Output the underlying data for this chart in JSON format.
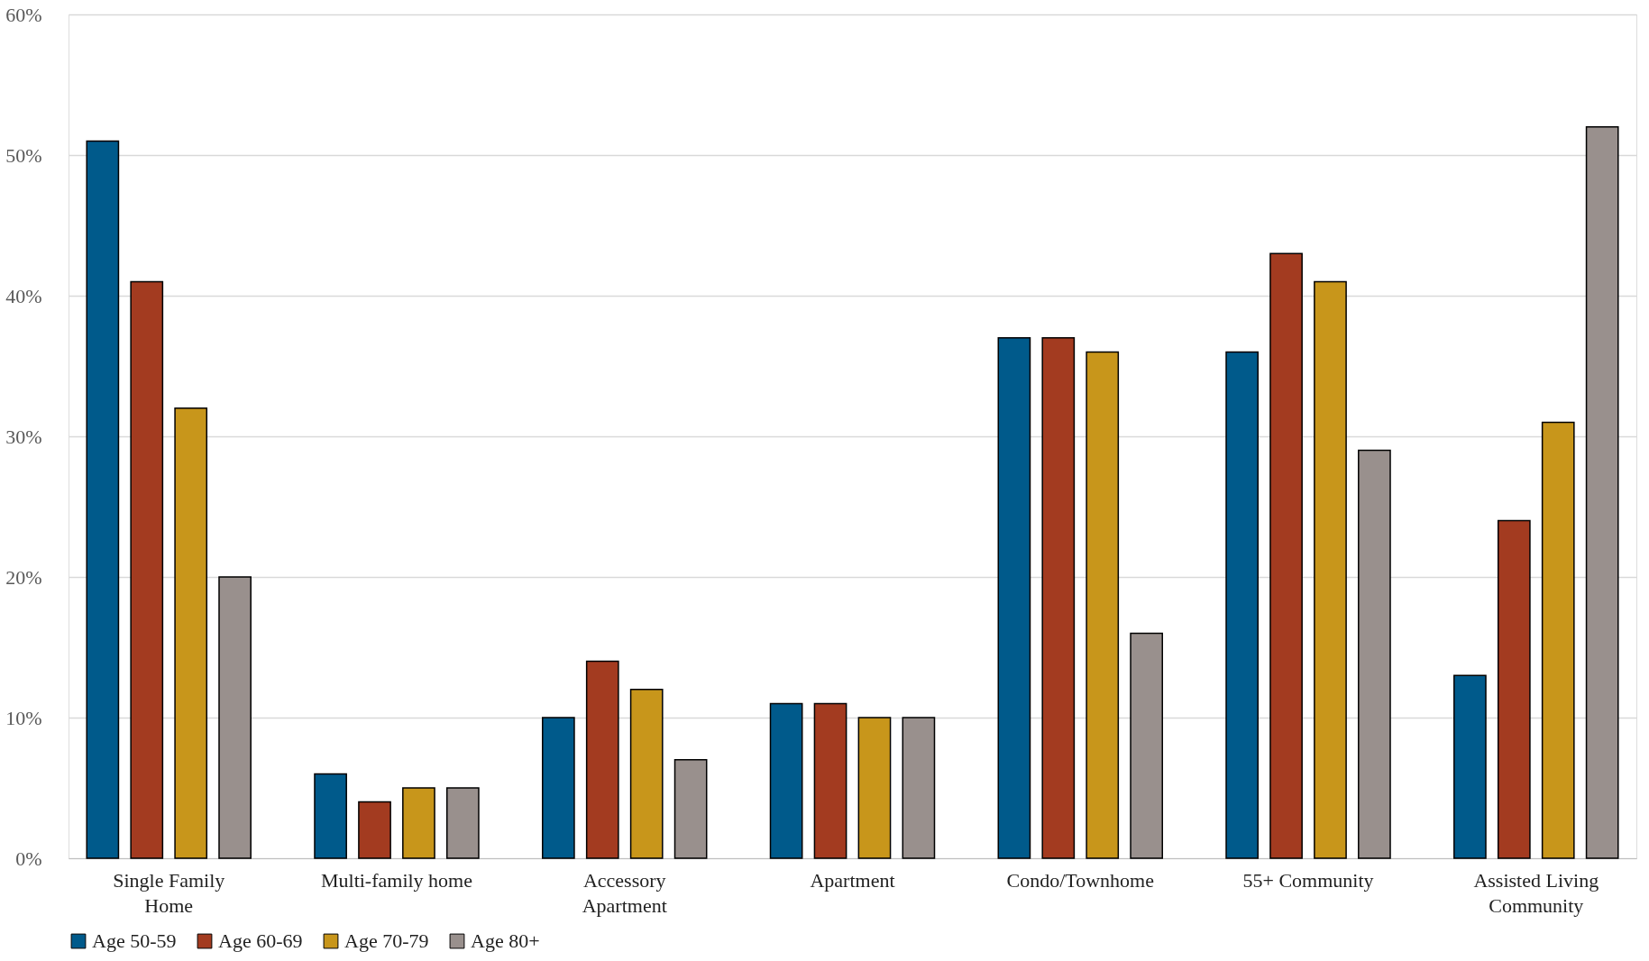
{
  "chart_data": {
    "type": "bar",
    "categories": [
      "Single Family Home",
      "Multi-family home",
      "Accessory Apartment",
      "Apartment",
      "Condo/Townhome",
      "55+ Community",
      "Assisted Living Community"
    ],
    "series": [
      {
        "name": "Age 50-59",
        "color": "#005a8b",
        "values": [
          51,
          6,
          10,
          11,
          37,
          36,
          13
        ]
      },
      {
        "name": "Age 60-69",
        "color": "#a33b20",
        "values": [
          41,
          4,
          14,
          11,
          37,
          43,
          24
        ]
      },
      {
        "name": "Age 70-79",
        "color": "#c8961b",
        "values": [
          32,
          5,
          12,
          10,
          36,
          41,
          31
        ]
      },
      {
        "name": "Age 80+",
        "color": "#99908d",
        "values": [
          20,
          5,
          7,
          10,
          16,
          29,
          52
        ]
      }
    ],
    "ylim": [
      0,
      60
    ],
    "yticks": [
      {
        "value": 0,
        "label": "0%"
      },
      {
        "value": 10,
        "label": "10%"
      },
      {
        "value": 20,
        "label": "20%"
      },
      {
        "value": 30,
        "label": "30%"
      },
      {
        "value": 40,
        "label": "40%"
      },
      {
        "value": 50,
        "label": "50%"
      },
      {
        "value": 60,
        "label": "60%"
      }
    ],
    "grid": "y",
    "legend": "bottom"
  }
}
